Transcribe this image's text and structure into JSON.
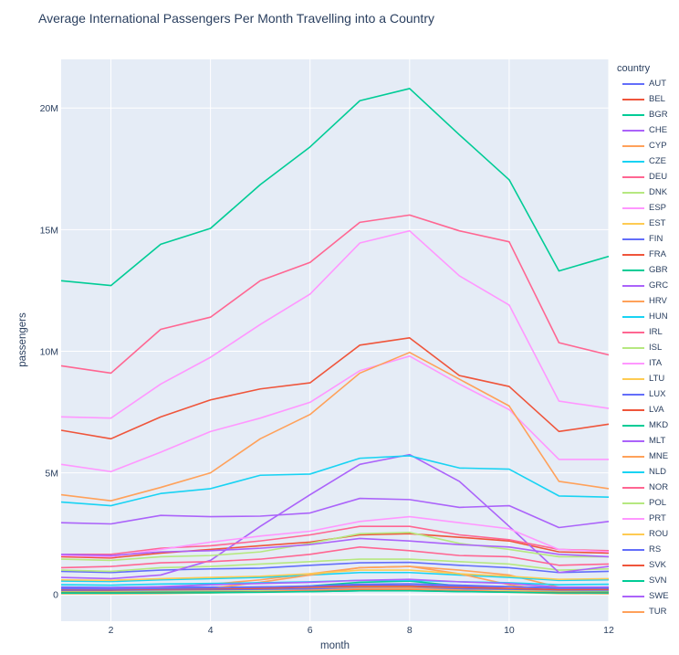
{
  "chart_data": {
    "type": "line",
    "title": "Average International Passengers Per Month Travelling into a Country",
    "xlabel": "month",
    "ylabel": "passengers",
    "xlim": [
      1,
      12
    ],
    "ylim": [
      -1100000,
      22000000
    ],
    "x": [
      1,
      2,
      3,
      4,
      5,
      6,
      7,
      8,
      9,
      10,
      11,
      12
    ],
    "x_ticks": [
      2,
      4,
      6,
      8,
      10,
      12
    ],
    "x_tick_labels": [
      "2",
      "4",
      "6",
      "8",
      "10",
      "12"
    ],
    "y_ticks": [
      0,
      5000000,
      10000000,
      15000000,
      20000000
    ],
    "y_tick_labels": [
      "0",
      "5M",
      "10M",
      "15M",
      "20M"
    ],
    "grid": true,
    "legend_title": "country",
    "legend_position": "right",
    "series": [
      {
        "name": "AUT",
        "color": "#636efa",
        "values": [
          950000,
          900000,
          1000000,
          1050000,
          1080000,
          1200000,
          1300000,
          1320000,
          1200000,
          1100000,
          900000,
          950000
        ]
      },
      {
        "name": "BEL",
        "color": "#EF553B",
        "values": [
          1550000,
          1500000,
          1700000,
          1850000,
          2000000,
          2150000,
          2450000,
          2500000,
          2350000,
          2200000,
          1750000,
          1700000
        ]
      },
      {
        "name": "BGR",
        "color": "#00cc96",
        "values": [
          120000,
          110000,
          130000,
          160000,
          220000,
          350000,
          500000,
          550000,
          350000,
          200000,
          110000,
          120000
        ]
      },
      {
        "name": "CHE",
        "color": "#ab63fa",
        "values": [
          2950000,
          2900000,
          3250000,
          3200000,
          3220000,
          3350000,
          3950000,
          3900000,
          3580000,
          3650000,
          2750000,
          3000000
        ]
      },
      {
        "name": "CYP",
        "color": "#FFA15A",
        "values": [
          200000,
          200000,
          280000,
          420000,
          600000,
          850000,
          1100000,
          1150000,
          1000000,
          800000,
          300000,
          210000
        ]
      },
      {
        "name": "CZE",
        "color": "#19d3f3",
        "values": [
          550000,
          530000,
          600000,
          650000,
          700000,
          800000,
          900000,
          900000,
          800000,
          700000,
          580000,
          600000
        ]
      },
      {
        "name": "DEU",
        "color": "#FF6692",
        "values": [
          9400000,
          9100000,
          10900000,
          11400000,
          12900000,
          13650000,
          15300000,
          15600000,
          14950000,
          14500000,
          10350000,
          9850000
        ]
      },
      {
        "name": "DNK",
        "color": "#B6E880",
        "values": [
          1000000,
          950000,
          1100000,
          1150000,
          1250000,
          1350000,
          1450000,
          1450000,
          1350000,
          1250000,
          1000000,
          1050000
        ]
      },
      {
        "name": "ESP",
        "color": "#FF97FF",
        "values": [
          7300000,
          7250000,
          8650000,
          9750000,
          11100000,
          12350000,
          14450000,
          14950000,
          13100000,
          11900000,
          7950000,
          7650000
        ]
      },
      {
        "name": "EST",
        "color": "#FECB52",
        "values": [
          120000,
          120000,
          140000,
          150000,
          170000,
          200000,
          230000,
          230000,
          200000,
          170000,
          130000,
          130000
        ]
      },
      {
        "name": "FIN",
        "color": "#636efa",
        "values": [
          300000,
          290000,
          310000,
          300000,
          310000,
          330000,
          380000,
          370000,
          330000,
          320000,
          280000,
          300000
        ]
      },
      {
        "name": "FRA",
        "color": "#EF553B",
        "values": [
          6750000,
          6400000,
          7300000,
          8000000,
          8450000,
          8700000,
          10250000,
          10550000,
          9000000,
          8550000,
          6700000,
          7000000
        ]
      },
      {
        "name": "GBR",
        "color": "#00cc96",
        "values": [
          12900000,
          12700000,
          14400000,
          15050000,
          16850000,
          18400000,
          20300000,
          20800000,
          18900000,
          17050000,
          13300000,
          13900000
        ]
      },
      {
        "name": "GRC",
        "color": "#ab63fa",
        "values": [
          700000,
          650000,
          800000,
          1400000,
          2800000,
          4100000,
          5350000,
          5750000,
          4650000,
          2800000,
          900000,
          1150000
        ]
      },
      {
        "name": "HRV",
        "color": "#FFA15A",
        "values": [
          100000,
          100000,
          130000,
          250000,
          500000,
          800000,
          1100000,
          1150000,
          850000,
          400000,
          120000,
          100000
        ]
      },
      {
        "name": "HUN",
        "color": "#19d3f3",
        "values": [
          400000,
          380000,
          430000,
          450000,
          480000,
          520000,
          580000,
          580000,
          520000,
          480000,
          400000,
          420000
        ]
      },
      {
        "name": "IRL",
        "color": "#FF6692",
        "values": [
          1100000,
          1150000,
          1300000,
          1350000,
          1450000,
          1650000,
          1950000,
          1800000,
          1600000,
          1550000,
          1200000,
          1250000
        ]
      },
      {
        "name": "ISL",
        "color": "#B6E880",
        "values": [
          150000,
          160000,
          160000,
          150000,
          170000,
          250000,
          320000,
          330000,
          250000,
          200000,
          160000,
          160000
        ]
      },
      {
        "name": "ITA",
        "color": "#FF97FF",
        "values": [
          5350000,
          5050000,
          5850000,
          6700000,
          7250000,
          7900000,
          9200000,
          9800000,
          8650000,
          7600000,
          5550000,
          5550000
        ]
      },
      {
        "name": "LTU",
        "color": "#FECB52",
        "values": [
          150000,
          150000,
          170000,
          180000,
          200000,
          230000,
          260000,
          260000,
          230000,
          200000,
          160000,
          170000
        ]
      },
      {
        "name": "LUX",
        "color": "#636efa",
        "values": [
          170000,
          170000,
          190000,
          200000,
          210000,
          230000,
          250000,
          250000,
          230000,
          210000,
          180000,
          180000
        ]
      },
      {
        "name": "LVA",
        "color": "#EF553B",
        "values": [
          200000,
          190000,
          220000,
          230000,
          250000,
          300000,
          330000,
          330000,
          290000,
          250000,
          200000,
          210000
        ]
      },
      {
        "name": "MKD",
        "color": "#00cc96",
        "values": [
          80000,
          80000,
          90000,
          100000,
          110000,
          120000,
          150000,
          160000,
          120000,
          100000,
          80000,
          90000
        ]
      },
      {
        "name": "MLT",
        "color": "#ab63fa",
        "values": [
          250000,
          250000,
          320000,
          400000,
          450000,
          500000,
          580000,
          620000,
          520000,
          450000,
          300000,
          300000
        ]
      },
      {
        "name": "MNE",
        "color": "#FFA15A",
        "values": [
          30000,
          30000,
          40000,
          60000,
          110000,
          170000,
          230000,
          240000,
          180000,
          90000,
          40000,
          30000
        ]
      },
      {
        "name": "NLD",
        "color": "#19d3f3",
        "values": [
          3800000,
          3650000,
          4150000,
          4350000,
          4900000,
          4950000,
          5600000,
          5700000,
          5200000,
          5150000,
          4050000,
          4000000
        ]
      },
      {
        "name": "NOR",
        "color": "#FF6692",
        "values": [
          1650000,
          1650000,
          1900000,
          2000000,
          2200000,
          2450000,
          2800000,
          2800000,
          2450000,
          2250000,
          1850000,
          1800000
        ]
      },
      {
        "name": "POL",
        "color": "#B6E880",
        "values": [
          1450000,
          1400000,
          1550000,
          1600000,
          1750000,
          2100000,
          2500000,
          2550000,
          2100000,
          1850000,
          1550000,
          1550000
        ]
      },
      {
        "name": "PRT",
        "color": "#FF97FF",
        "values": [
          1600000,
          1550000,
          1850000,
          2150000,
          2400000,
          2600000,
          3000000,
          3200000,
          2950000,
          2700000,
          1850000,
          1750000
        ]
      },
      {
        "name": "ROU",
        "color": "#FECB52",
        "values": [
          600000,
          580000,
          650000,
          700000,
          750000,
          850000,
          1000000,
          1000000,
          850000,
          750000,
          620000,
          650000
        ]
      },
      {
        "name": "RS",
        "color": "#636efa",
        "values": [
          230000,
          220000,
          250000,
          270000,
          300000,
          350000,
          420000,
          440000,
          380000,
          320000,
          250000,
          260000
        ]
      },
      {
        "name": "SVK",
        "color": "#EF553B",
        "values": [
          60000,
          60000,
          70000,
          80000,
          100000,
          130000,
          170000,
          170000,
          130000,
          100000,
          70000,
          70000
        ]
      },
      {
        "name": "SVN",
        "color": "#00cc96",
        "values": [
          50000,
          50000,
          60000,
          70000,
          90000,
          120000,
          150000,
          150000,
          120000,
          90000,
          60000,
          60000
        ]
      },
      {
        "name": "SWE",
        "color": "#ab63fa",
        "values": [
          1650000,
          1600000,
          1750000,
          1800000,
          1900000,
          2050000,
          2300000,
          2200000,
          2050000,
          1950000,
          1650000,
          1550000
        ]
      },
      {
        "name": "TUR",
        "color": "#FFA15A",
        "values": [
          4100000,
          3850000,
          4400000,
          5000000,
          6400000,
          7400000,
          9100000,
          9950000,
          8850000,
          7750000,
          4650000,
          4350000
        ]
      }
    ]
  }
}
